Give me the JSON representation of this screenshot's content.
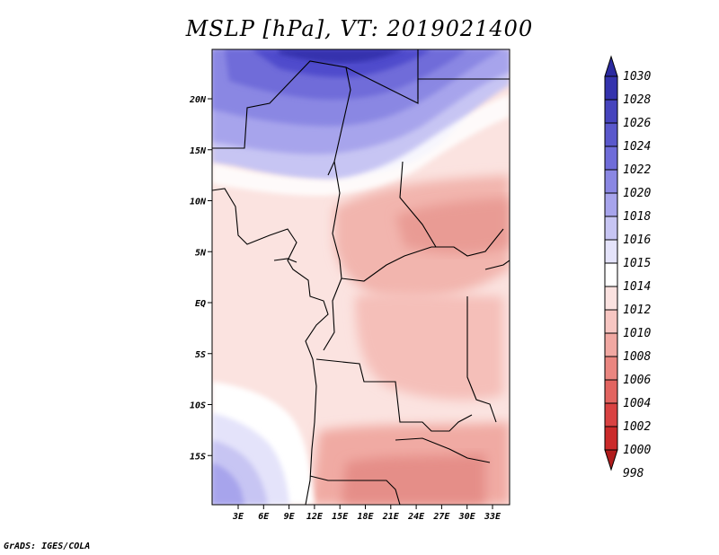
{
  "title": "MSLP [hPa], VT: 2019021400",
  "footer": "GrADS: IGES/COLA",
  "lat_labels": [
    "20N",
    "15N",
    "10N",
    "5N",
    "EQ",
    "5S",
    "10S",
    "15S"
  ],
  "lon_labels": [
    "3E",
    "6E",
    "9E",
    "12E",
    "15E",
    "18E",
    "21E",
    "24E",
    "27E",
    "30E",
    "33E"
  ],
  "colorbar": {
    "levels": [
      "1030",
      "1028",
      "1026",
      "1024",
      "1022",
      "1020",
      "1018",
      "1016",
      "1015",
      "1014",
      "1012",
      "1010",
      "1008",
      "1006",
      "1004",
      "1002",
      "1000",
      "998"
    ],
    "colors": [
      "#2b2aa0",
      "#3433ad",
      "#4644bd",
      "#5a58cc",
      "#6f6cd9",
      "#8a87e3",
      "#a7a4ec",
      "#c7c5f3",
      "#e4e3fa",
      "#ffffff",
      "#fbe2e0",
      "#f7c6c2",
      "#f1a8a2",
      "#ea8680",
      "#e26460",
      "#d94242",
      "#cb2a2a",
      "#b01c1c"
    ]
  },
  "colors": {
    "high": "#4643c4",
    "mid": "#fde8e6",
    "low": "#e58e88",
    "border": "#000000"
  }
}
